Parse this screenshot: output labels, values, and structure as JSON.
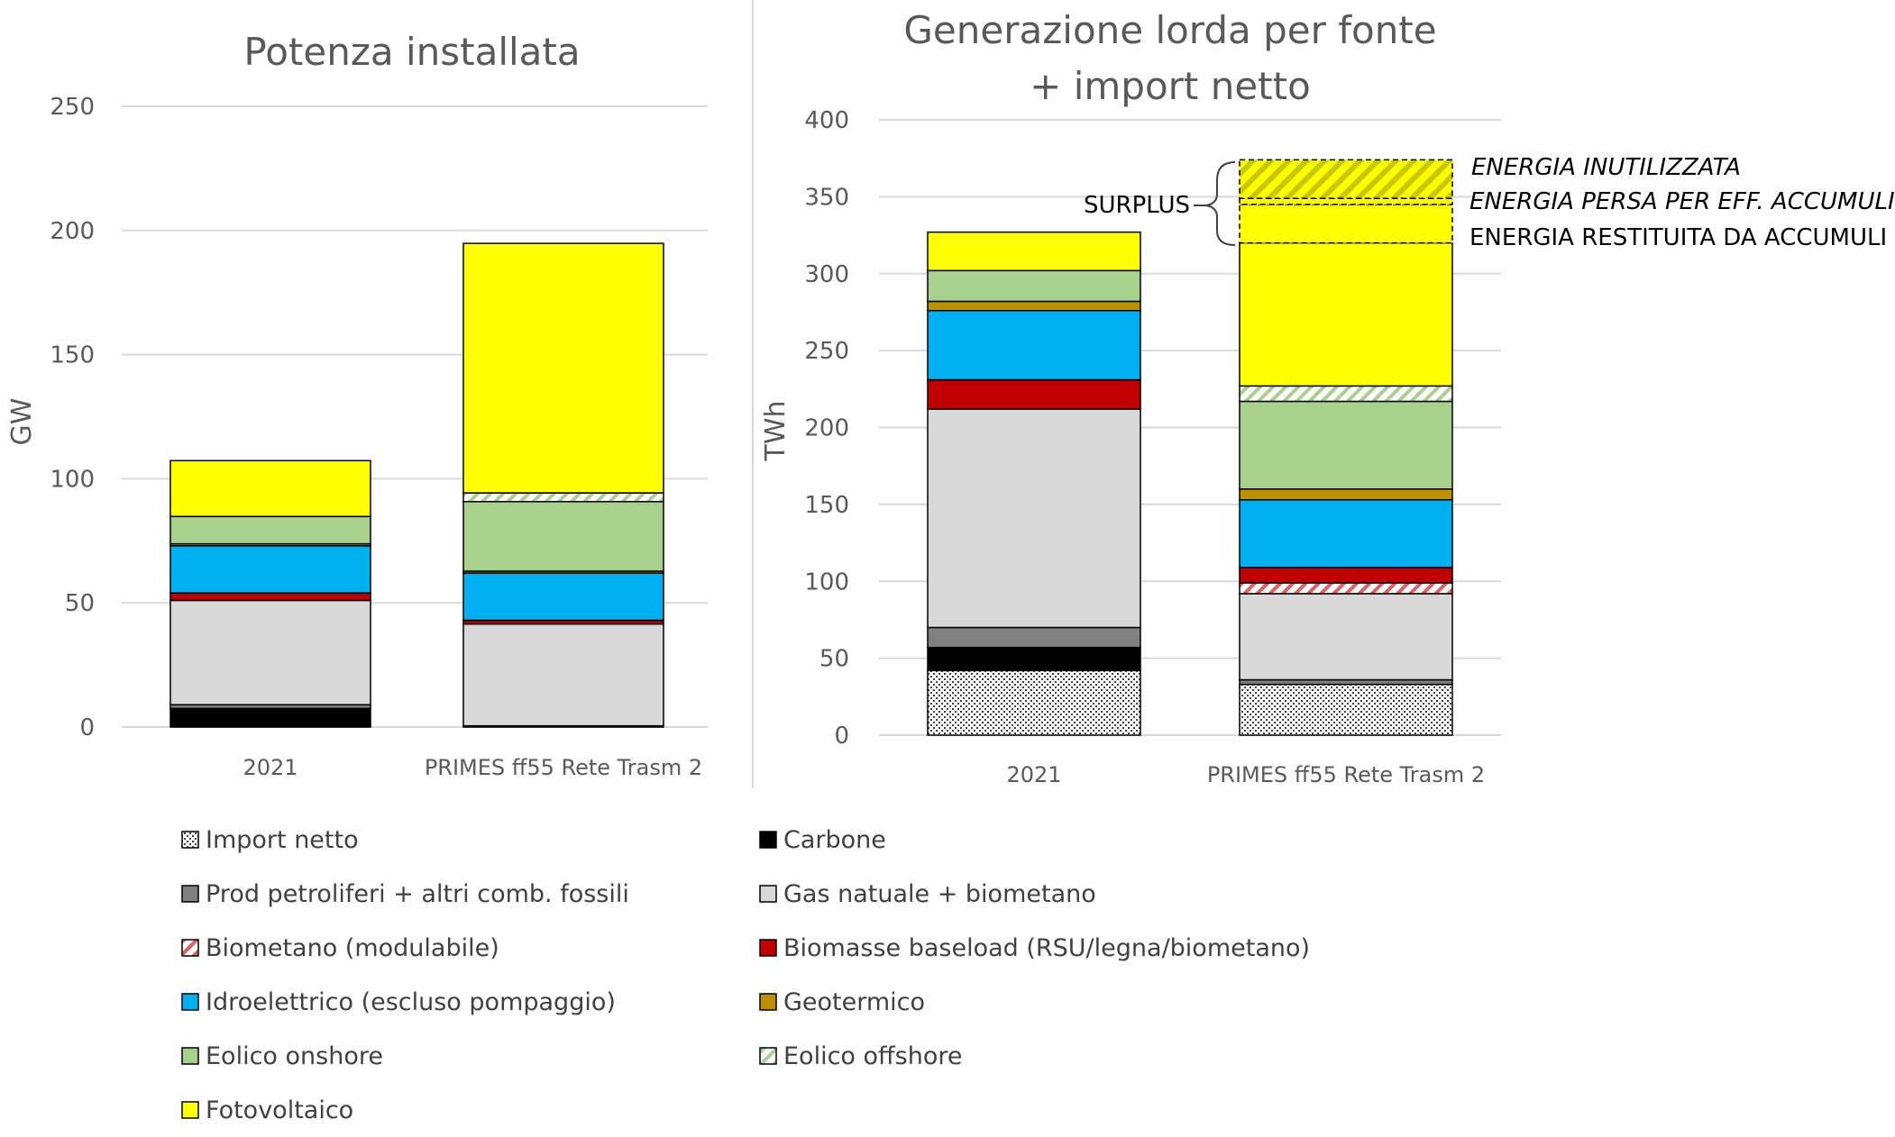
{
  "chart_data": [
    {
      "type": "bar",
      "stacked": true,
      "title": "Potenza installata",
      "xlabel": "",
      "ylabel": "GW",
      "ylim": [
        0,
        250
      ],
      "yticks": [
        0,
        50,
        100,
        150,
        200,
        250
      ],
      "categories": [
        "2021",
        "PRIMES ff55 Rete Trasm 2"
      ],
      "series": [
        {
          "name": "Import netto",
          "values": [
            0,
            0
          ]
        },
        {
          "name": "Carbone",
          "values": [
            7.5,
            0
          ]
        },
        {
          "name": "Prod petroliferi + altri comb. fossili",
          "values": [
            1.5,
            0.5
          ]
        },
        {
          "name": "Gas natuale + biometano",
          "values": [
            42,
            41
          ]
        },
        {
          "name": "Biometano (modulabile)",
          "values": [
            0,
            0
          ]
        },
        {
          "name": "Biomasse baseload (RSU/legna/biometano)",
          "values": [
            3,
            1.5
          ]
        },
        {
          "name": "Idroelettrico (escluso pompaggio)",
          "values": [
            19,
            19
          ]
        },
        {
          "name": "Geotermico",
          "values": [
            0.8,
            0.8
          ]
        },
        {
          "name": "Eolico onshore",
          "values": [
            11,
            28
          ]
        },
        {
          "name": "Eolico offshore",
          "values": [
            0,
            3.5
          ]
        },
        {
          "name": "Fotovoltaico",
          "values": [
            22.5,
            100.5
          ]
        }
      ]
    },
    {
      "type": "bar",
      "stacked": true,
      "title": "Generazione lorda per fonte",
      "title_line2": "+ import netto",
      "xlabel": "",
      "ylabel": "TWh",
      "ylim": [
        0,
        400
      ],
      "yticks": [
        0,
        50,
        100,
        150,
        200,
        250,
        300,
        350,
        400
      ],
      "categories": [
        "2021",
        "PRIMES ff55 Rete Trasm 2"
      ],
      "series": [
        {
          "name": "Import netto",
          "values": [
            42,
            33
          ]
        },
        {
          "name": "Carbone",
          "values": [
            15,
            0
          ]
        },
        {
          "name": "Prod petroliferi + altri comb. fossili",
          "values": [
            13,
            3
          ]
        },
        {
          "name": "Gas natuale + biometano",
          "values": [
            142,
            56
          ]
        },
        {
          "name": "Biometano (modulabile)",
          "values": [
            0,
            7
          ]
        },
        {
          "name": "Biomasse baseload (RSU/legna/biometano)",
          "values": [
            19,
            10
          ]
        },
        {
          "name": "Idroelettrico (escluso pompaggio)",
          "values": [
            45,
            44
          ]
        },
        {
          "name": "Geotermico",
          "values": [
            6,
            7
          ]
        },
        {
          "name": "Eolico onshore",
          "values": [
            20,
            57
          ]
        },
        {
          "name": "Eolico offshore",
          "values": [
            0,
            10
          ]
        },
        {
          "name": "Fotovoltaico",
          "values": [
            25,
            93
          ]
        }
      ],
      "surplus": {
        "label": "SURPLUS",
        "segments": [
          {
            "name": "ENERGIA RESTITUITA DA ACCUMULI",
            "from": 320,
            "to": 345
          },
          {
            "name": "ENERGIA PERSA PER EFF. ACCUMULI",
            "from": 345,
            "to": 349
          },
          {
            "name": "ENERGIA INUTILIZZATA",
            "from": 349,
            "to": 374
          }
        ]
      }
    }
  ],
  "legend": {
    "items": [
      {
        "name": "Import netto",
        "key": "import"
      },
      {
        "name": "Carbone",
        "key": "carbone"
      },
      {
        "name": "Prod petroliferi + altri comb. fossili",
        "key": "petrol"
      },
      {
        "name": "Gas natuale + biometano",
        "key": "gas"
      },
      {
        "name": "Biometano (modulabile)",
        "key": "biometano"
      },
      {
        "name": "Biomasse baseload (RSU/legna/biometano)",
        "key": "biomasse"
      },
      {
        "name": "Idroelettrico (escluso pompaggio)",
        "key": "idro"
      },
      {
        "name": "Geotermico",
        "key": "geo"
      },
      {
        "name": "Eolico onshore",
        "key": "eolon"
      },
      {
        "name": "Eolico offshore",
        "key": "eoloff"
      },
      {
        "name": "Fotovoltaico",
        "key": "fv"
      }
    ]
  },
  "colors": {
    "import": "#ffffff",
    "carbone": "#000000",
    "petrol": "#808080",
    "gas": "#d9d9d9",
    "biometano": "#ffffff",
    "biometano_hatch": "#e06060",
    "biomasse": "#c00000",
    "idro": "#00b0f0",
    "geo": "#bf9000",
    "eolon": "#a9d18e",
    "eoloff": "#ffffff",
    "eoloff_hatch": "#a9d18e",
    "fv": "#ffff00",
    "surplus_hatch": "#c8c800",
    "grid": "#d9d9d9",
    "text": "#595959"
  }
}
